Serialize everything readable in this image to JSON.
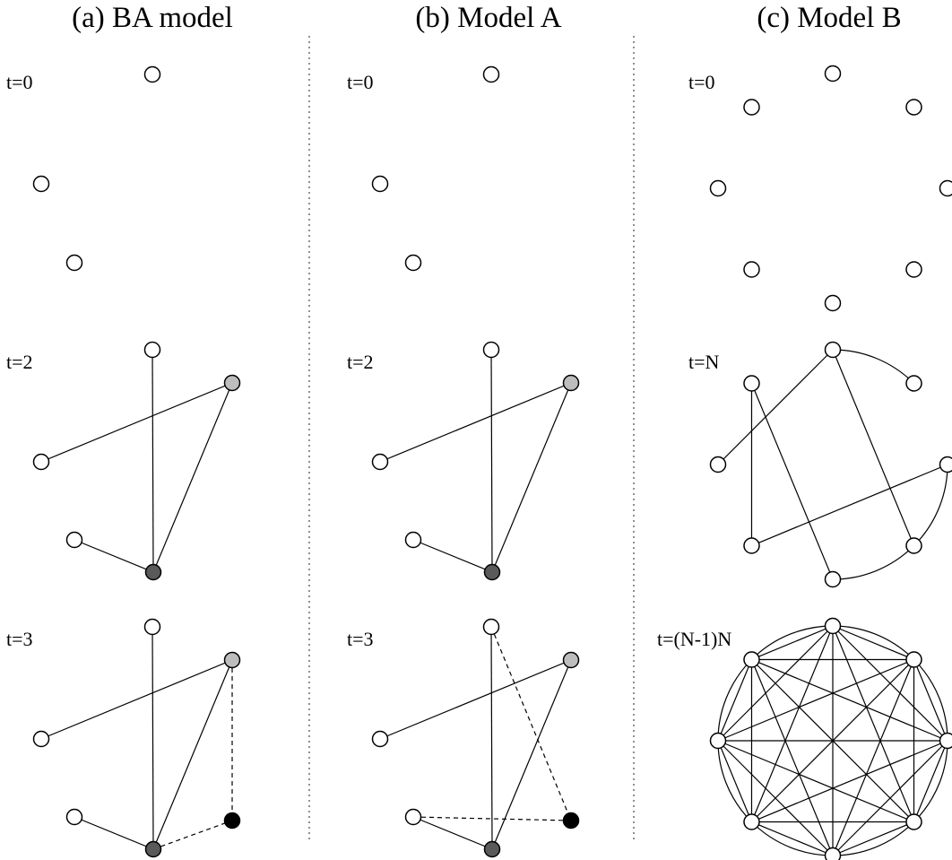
{
  "panels": [
    {
      "id": "a",
      "title": "(a) BA model",
      "rows": [
        {
          "label": "t=0"
        },
        {
          "label": "t=2"
        },
        {
          "label": "t=3"
        }
      ]
    },
    {
      "id": "b",
      "title": "(b) Model A",
      "rows": [
        {
          "label": "t=0"
        },
        {
          "label": "t=2"
        },
        {
          "label": "t=3"
        }
      ]
    },
    {
      "id": "c",
      "title": "(c) Model B",
      "rows": [
        {
          "label": "t=0"
        },
        {
          "label": "t=N"
        },
        {
          "label": "t=(N-1)N"
        }
      ]
    }
  ],
  "colors": {
    "node_stroke": "#000000",
    "node_empty": "#ffffff",
    "node_light": "#bdbdbd",
    "node_dark": "#5a5a5a",
    "node_new": "#000000",
    "divider": "#555555"
  }
}
